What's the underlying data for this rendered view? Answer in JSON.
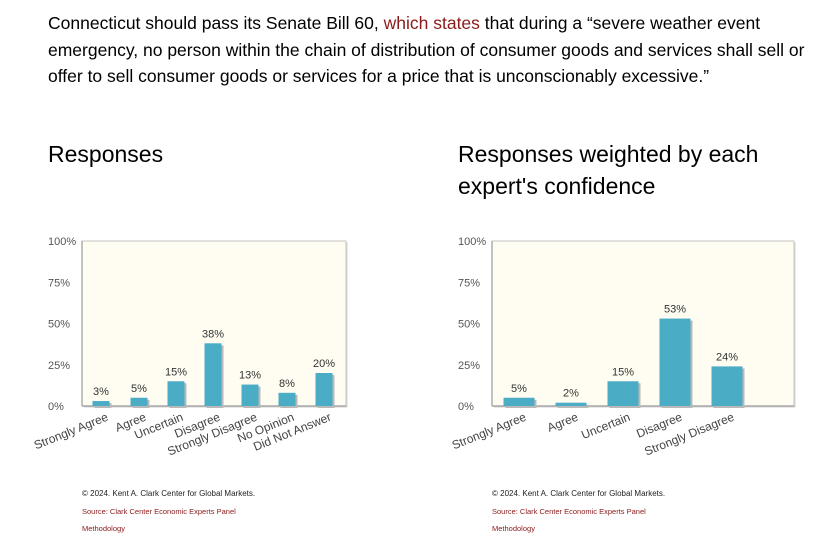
{
  "statement": {
    "part1": "Connecticut should pass its Senate Bill 60, ",
    "link": "which states",
    "part2": " that during a “severe weather event emergency, no person within the chain of distribution of consumer goods and services shall sell or offer to sell consumer goods or services for a price that is unconscionably excessive.”"
  },
  "chart_data": [
    {
      "type": "bar",
      "title": "Responses",
      "categories": [
        "Strongly Agree",
        "Agree",
        "Uncertain",
        "Disagree",
        "Strongly Disagree",
        "No Opinion",
        "Did Not Answer"
      ],
      "values": [
        3,
        5,
        15,
        38,
        13,
        8,
        20
      ],
      "value_labels": [
        "3%",
        "5%",
        "15%",
        "38%",
        "13%",
        "8%",
        "20%"
      ],
      "yticks": [
        "0%",
        "25%",
        "50%",
        "75%",
        "100%"
      ],
      "ylim": [
        0,
        100
      ],
      "bar_color": "#4bacc6",
      "plot_background": "#fffdf2",
      "grid": false
    },
    {
      "type": "bar",
      "title": "Responses weighted by each expert's confidence",
      "categories": [
        "Strongly Agree",
        "Agree",
        "Uncertain",
        "Disagree",
        "Strongly Disagree"
      ],
      "values": [
        5,
        2,
        15,
        53,
        24
      ],
      "value_labels": [
        "5%",
        "2%",
        "15%",
        "53%",
        "24%"
      ],
      "yticks": [
        "0%",
        "25%",
        "50%",
        "75%",
        "100%"
      ],
      "ylim": [
        0,
        100
      ],
      "bar_color": "#4bacc6",
      "plot_background": "#fffdf2",
      "grid": false
    }
  ],
  "footer": {
    "copyright": "© 2024. Kent A. Clark Center for Global Markets.",
    "source": "Source: Clark Center Economic Experts Panel",
    "methodology": "Methodology"
  }
}
